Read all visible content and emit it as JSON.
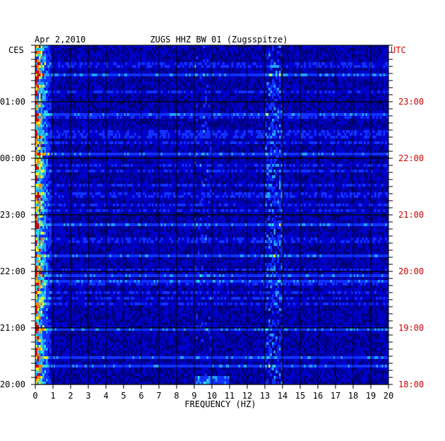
{
  "chart_data": {
    "type": "heatmap",
    "date": "Apr 2,2010",
    "title": "ZUGS HHZ BW 01 (Zugsspitze)",
    "left_tz": "CES",
    "right_tz": "UTC",
    "xlabel": "FREQUENCY (HZ)",
    "xlim": [
      0,
      20
    ],
    "x_ticks": [
      "0",
      "1",
      "2",
      "3",
      "4",
      "5",
      "6",
      "7",
      "8",
      "9",
      "10",
      "11",
      "12",
      "13",
      "14",
      "15",
      "16",
      "17",
      "18",
      "19",
      "20"
    ],
    "left_time_labels": [
      "01:00",
      "00:00",
      "23:00",
      "22:00",
      "21:00",
      "20:00"
    ],
    "right_time_labels": [
      "23:00",
      "22:00",
      "21:00",
      "20:00",
      "19:00",
      "18:00"
    ],
    "colorscale": [
      "#00007a",
      "#0000c8",
      "#1030ff",
      "#20a0ff",
      "#30e0e0",
      "#f0f020",
      "#ff8800",
      "#d00000"
    ],
    "features": {
      "low_frequency_energy_hz": [
        0,
        1
      ],
      "hotspot_hz": [
        13,
        14
      ],
      "bottom_spike_hz": [
        9,
        11
      ]
    },
    "grid": true
  }
}
